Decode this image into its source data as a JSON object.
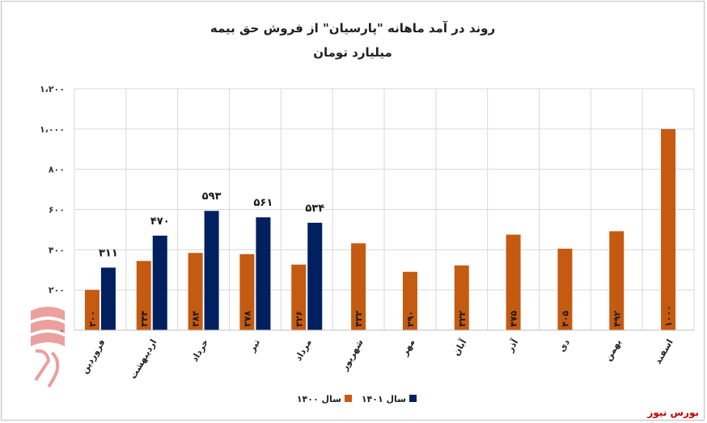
{
  "chart_data": {
    "type": "bar",
    "title": "روند در آمد ماهانه \"پارسیان\" از فروش حق بیمه",
    "subtitle": "میلیارد تومان",
    "categories": [
      "فروردین",
      "اردیبهشت",
      "خرداد",
      "تیر",
      "مرداد",
      "شهریور",
      "مهر",
      "آبان",
      "آذر",
      "دی",
      "بهمن",
      "اسفند"
    ],
    "series": [
      {
        "name": "سال ۱۴۰۰",
        "color": "#c55a11",
        "values": [
          200,
          344,
          384,
          378,
          326,
          432,
          290,
          322,
          475,
          405,
          492,
          1000
        ],
        "labels": [
          "۲۰۰",
          "۳۴۴",
          "۳۸۴",
          "۳۷۸",
          "۳۲۶",
          "۴۳۲",
          "۲۹۰",
          "۳۲۲",
          "۴۷۵",
          "۴۰۵",
          "۴۹۲",
          "۱۰۰۰"
        ]
      },
      {
        "name": "سال ۱۴۰۱",
        "color": "#002060",
        "values": [
          311,
          470,
          593,
          561,
          534,
          null,
          null,
          null,
          null,
          null,
          null,
          null
        ],
        "labels": [
          "۳۱۱",
          "۴۷۰",
          "۵۹۳",
          "۵۶۱",
          "۵۳۴",
          "",
          "",
          "",
          "",
          "",
          "",
          ""
        ]
      }
    ],
    "yticks": [
      0,
      200,
      400,
      600,
      800,
      1000,
      1200
    ],
    "ytick_labels": [
      "۰",
      "۲۰۰",
      "۴۰۰",
      "۶۰۰",
      "۸۰۰",
      "۱،۰۰۰",
      "۱،۲۰۰"
    ],
    "ylim": [
      0,
      1200
    ],
    "grid": true,
    "legend_position": "bottom"
  },
  "source": "بورس نیوز",
  "watermark_text": "بورس نیوز"
}
